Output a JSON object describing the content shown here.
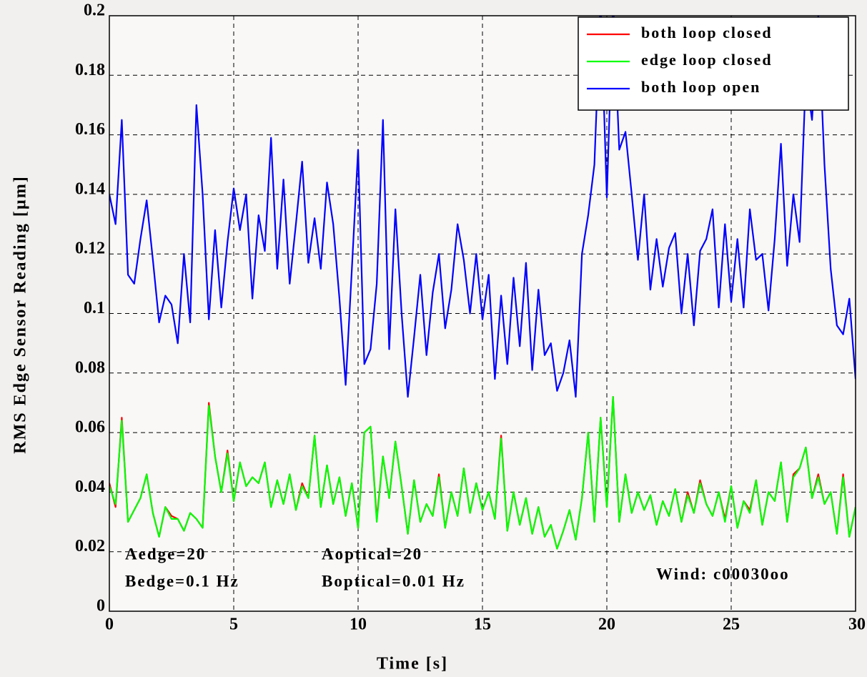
{
  "chart_data": {
    "type": "line",
    "xlabel": "Time [s]",
    "ylabel": "RMS Edge Sensor Reading [µm]",
    "xlim": [
      0,
      30
    ],
    "ylim": [
      0,
      0.2
    ],
    "xticks": [
      0,
      5,
      10,
      15,
      20,
      25,
      30
    ],
    "yticks": [
      0,
      0.02,
      0.04,
      0.06,
      0.08,
      0.1,
      0.12,
      0.14,
      0.16,
      0.18,
      0.2
    ],
    "grid": true,
    "legend": "upper right",
    "annotations": [
      "Aedge=20",
      "Bedge=0.1 Hz",
      "Aoptical=20",
      "Boptical=0.01 Hz",
      "Wind: c00030oo"
    ],
    "x": [
      0,
      0.25,
      0.5,
      0.75,
      1,
      1.25,
      1.5,
      1.75,
      2,
      2.25,
      2.5,
      2.75,
      3,
      3.25,
      3.5,
      3.75,
      4,
      4.25,
      4.5,
      4.75,
      5,
      5.25,
      5.5,
      5.75,
      6,
      6.25,
      6.5,
      6.75,
      7,
      7.25,
      7.5,
      7.75,
      8,
      8.25,
      8.5,
      8.75,
      9,
      9.25,
      9.5,
      9.75,
      10,
      10.25,
      10.5,
      10.75,
      11,
      11.25,
      11.5,
      11.75,
      12,
      12.25,
      12.5,
      12.75,
      13,
      13.25,
      13.5,
      13.75,
      14,
      14.25,
      14.5,
      14.75,
      15,
      15.25,
      15.5,
      15.75,
      16,
      16.25,
      16.5,
      16.75,
      17,
      17.25,
      17.5,
      17.75,
      18,
      18.25,
      18.5,
      18.75,
      19,
      19.25,
      19.5,
      19.75,
      20,
      20.25,
      20.5,
      20.75,
      21,
      21.25,
      21.5,
      21.75,
      22,
      22.25,
      22.5,
      22.75,
      23,
      23.25,
      23.5,
      23.75,
      24,
      24.25,
      24.5,
      24.75,
      25,
      25.25,
      25.5,
      25.75,
      26,
      26.25,
      26.5,
      26.75,
      27,
      27.25,
      27.5,
      27.75,
      28,
      28.25,
      28.5,
      28.75,
      29,
      29.25,
      29.5,
      29.75,
      30
    ],
    "series": [
      {
        "name": "both loop closed",
        "color": "#ff0000",
        "values": [
          0.043,
          0.035,
          0.065,
          0.03,
          0.034,
          0.038,
          0.046,
          0.033,
          0.025,
          0.035,
          0.032,
          0.031,
          0.027,
          0.033,
          0.031,
          0.028,
          0.07,
          0.052,
          0.04,
          0.054,
          0.037,
          0.05,
          0.042,
          0.045,
          0.043,
          0.05,
          0.035,
          0.044,
          0.036,
          0.046,
          0.034,
          0.043,
          0.038,
          0.059,
          0.035,
          0.049,
          0.036,
          0.045,
          0.032,
          0.043,
          0.028,
          0.06,
          0.062,
          0.031,
          0.052,
          0.038,
          0.057,
          0.042,
          0.026,
          0.044,
          0.03,
          0.036,
          0.032,
          0.046,
          0.028,
          0.04,
          0.032,
          0.048,
          0.033,
          0.043,
          0.034,
          0.04,
          0.031,
          0.059,
          0.027,
          0.04,
          0.029,
          0.038,
          0.026,
          0.035,
          0.025,
          0.029,
          0.021,
          0.027,
          0.034,
          0.024,
          0.038,
          0.06,
          0.03,
          0.065,
          0.035,
          0.072,
          0.03,
          0.046,
          0.033,
          0.04,
          0.034,
          0.039,
          0.029,
          0.037,
          0.032,
          0.041,
          0.03,
          0.04,
          0.033,
          0.044,
          0.036,
          0.032,
          0.04,
          0.031,
          0.042,
          0.028,
          0.037,
          0.034,
          0.044,
          0.029,
          0.04,
          0.037,
          0.05,
          0.03,
          0.046,
          0.048,
          0.055,
          0.038,
          0.046,
          0.036,
          0.04,
          0.026,
          0.046,
          0.025,
          0.035
        ]
      },
      {
        "name": "edge loop closed",
        "color": "#00ff00",
        "values": [
          0.042,
          0.036,
          0.064,
          0.03,
          0.034,
          0.038,
          0.046,
          0.033,
          0.025,
          0.035,
          0.031,
          0.031,
          0.027,
          0.033,
          0.031,
          0.028,
          0.069,
          0.052,
          0.04,
          0.053,
          0.037,
          0.05,
          0.042,
          0.045,
          0.043,
          0.05,
          0.035,
          0.044,
          0.036,
          0.046,
          0.034,
          0.042,
          0.038,
          0.059,
          0.035,
          0.049,
          0.036,
          0.045,
          0.032,
          0.043,
          0.028,
          0.06,
          0.062,
          0.03,
          0.052,
          0.038,
          0.057,
          0.042,
          0.026,
          0.044,
          0.03,
          0.036,
          0.032,
          0.045,
          0.028,
          0.04,
          0.032,
          0.048,
          0.033,
          0.043,
          0.034,
          0.04,
          0.031,
          0.058,
          0.027,
          0.04,
          0.029,
          0.038,
          0.026,
          0.035,
          0.025,
          0.029,
          0.021,
          0.027,
          0.034,
          0.024,
          0.038,
          0.06,
          0.03,
          0.065,
          0.035,
          0.072,
          0.03,
          0.046,
          0.033,
          0.04,
          0.034,
          0.039,
          0.029,
          0.037,
          0.032,
          0.041,
          0.03,
          0.039,
          0.033,
          0.043,
          0.036,
          0.032,
          0.04,
          0.03,
          0.042,
          0.028,
          0.037,
          0.033,
          0.044,
          0.029,
          0.04,
          0.037,
          0.05,
          0.03,
          0.045,
          0.048,
          0.055,
          0.038,
          0.045,
          0.036,
          0.04,
          0.026,
          0.045,
          0.025,
          0.035
        ]
      },
      {
        "name": "both loop open",
        "color": "#0000ff",
        "values": [
          0.14,
          0.13,
          0.165,
          0.113,
          0.11,
          0.125,
          0.138,
          0.118,
          0.097,
          0.106,
          0.103,
          0.09,
          0.12,
          0.097,
          0.17,
          0.14,
          0.098,
          0.128,
          0.102,
          0.124,
          0.142,
          0.128,
          0.14,
          0.105,
          0.133,
          0.121,
          0.159,
          0.115,
          0.145,
          0.11,
          0.13,
          0.151,
          0.117,
          0.132,
          0.115,
          0.144,
          0.13,
          0.105,
          0.076,
          0.115,
          0.155,
          0.083,
          0.088,
          0.11,
          0.165,
          0.088,
          0.135,
          0.1,
          0.072,
          0.092,
          0.113,
          0.086,
          0.107,
          0.12,
          0.095,
          0.108,
          0.13,
          0.118,
          0.1,
          0.12,
          0.098,
          0.113,
          0.078,
          0.106,
          0.083,
          0.112,
          0.089,
          0.117,
          0.081,
          0.108,
          0.086,
          0.09,
          0.074,
          0.08,
          0.091,
          0.072,
          0.12,
          0.133,
          0.15,
          0.205,
          0.139,
          0.205,
          0.155,
          0.161,
          0.14,
          0.118,
          0.14,
          0.108,
          0.125,
          0.109,
          0.122,
          0.127,
          0.1,
          0.12,
          0.096,
          0.121,
          0.125,
          0.135,
          0.102,
          0.13,
          0.104,
          0.125,
          0.102,
          0.135,
          0.118,
          0.12,
          0.101,
          0.125,
          0.157,
          0.116,
          0.14,
          0.124,
          0.18,
          0.165,
          0.2,
          0.15,
          0.115,
          0.096,
          0.093,
          0.105,
          0.078
        ]
      }
    ]
  }
}
